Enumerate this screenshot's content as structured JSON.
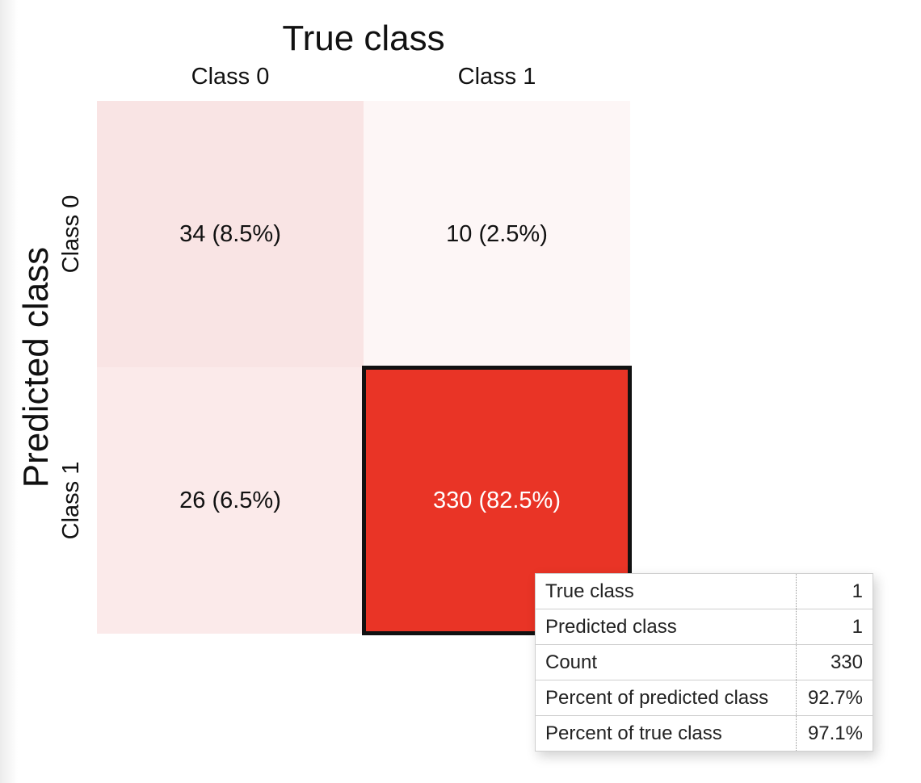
{
  "chart_data": {
    "type": "heatmap",
    "title": "",
    "xlabel": "True class",
    "ylabel": "Predicted class",
    "x_categories": [
      "Class 0",
      "Class 1"
    ],
    "y_categories": [
      "Class 0",
      "Class 1"
    ],
    "cells": [
      {
        "true_class": "Class 0",
        "predicted_class": "Class 0",
        "count": 34,
        "percent": "8.5%",
        "label": "34 (8.5%)",
        "color": "#f9e4e4"
      },
      {
        "true_class": "Class 1",
        "predicted_class": "Class 0",
        "count": 10,
        "percent": "2.5%",
        "label": "10 (2.5%)",
        "color": "#fdf6f6"
      },
      {
        "true_class": "Class 0",
        "predicted_class": "Class 1",
        "count": 26,
        "percent": "6.5%",
        "label": "26 (6.5%)",
        "color": "#fbeaea"
      },
      {
        "true_class": "Class 1",
        "predicted_class": "Class 1",
        "count": 330,
        "percent": "82.5%",
        "label": "330 (82.5%)",
        "color": "#e93426",
        "selected": true
      }
    ],
    "colors": {
      "high": "#e93426",
      "low": "#fdf6f6",
      "text_dark": "#111111",
      "text_light": "#ffffff"
    }
  },
  "tooltip": {
    "rows": [
      {
        "label": "True class",
        "value": "1"
      },
      {
        "label": "Predicted class",
        "value": "1"
      },
      {
        "label": "Count",
        "value": "330"
      },
      {
        "label": "Percent of predicted class",
        "value": "92.7%"
      },
      {
        "label": "Percent of true class",
        "value": "97.1%"
      }
    ]
  }
}
